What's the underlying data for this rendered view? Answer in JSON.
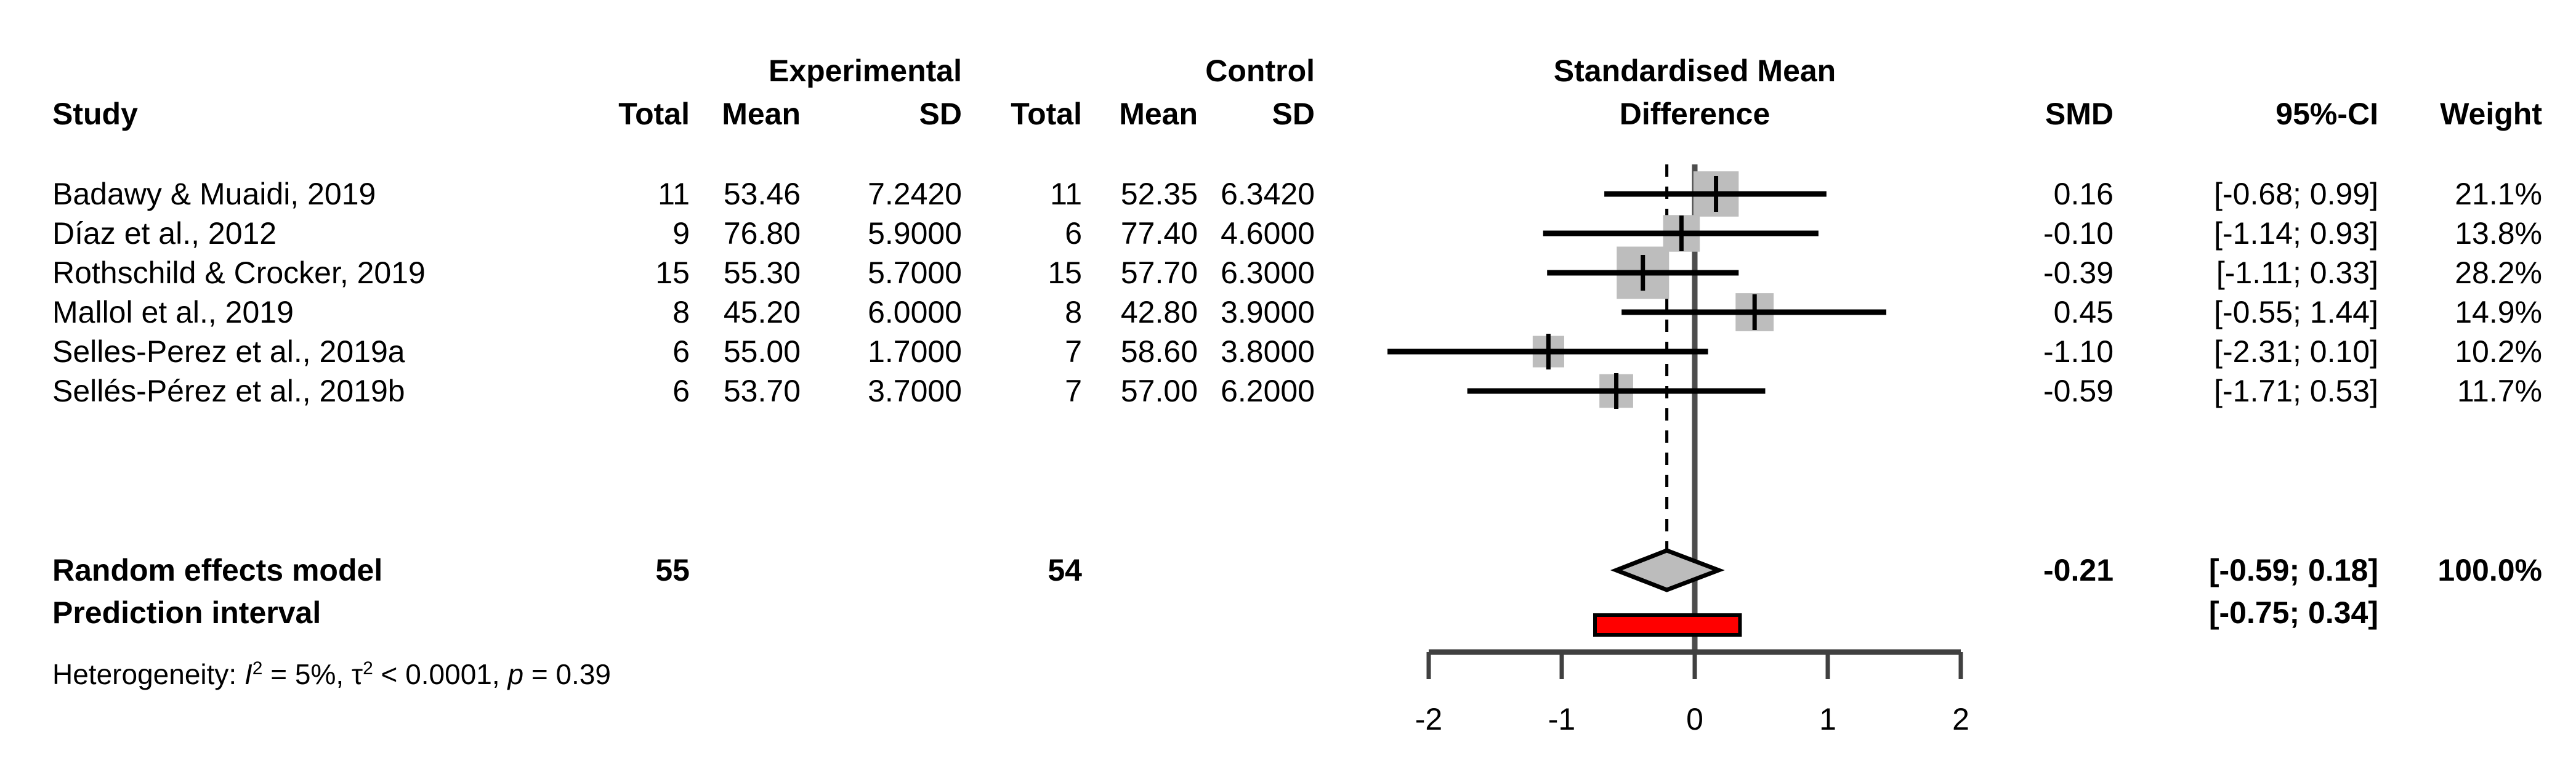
{
  "chart_data": {
    "type": "forest",
    "title_line1": "Standardised Mean",
    "title_line2": "Difference",
    "columns": {
      "study": "Study",
      "group_experimental": "Experimental",
      "group_control": "Control",
      "total": "Total",
      "mean": "Mean",
      "sd": "SD",
      "smd": "SMD",
      "ci": "95%-CI",
      "weight": "Weight"
    },
    "studies": [
      {
        "name": "Badawy & Muaidi, 2019",
        "exp_total": "11",
        "exp_mean": "53.46",
        "exp_sd": "7.2420",
        "ctrl_total": "11",
        "ctrl_mean": "52.35",
        "ctrl_sd": "6.3420",
        "smd_text": "0.16",
        "ci_text": "[-0.68; 0.99]",
        "weight_text": "21.1%",
        "smd": 0.16,
        "ci_low": -0.68,
        "ci_high": 0.99,
        "weight": 21.1
      },
      {
        "name": "Díaz et al., 2012",
        "exp_total": "9",
        "exp_mean": "76.80",
        "exp_sd": "5.9000",
        "ctrl_total": "6",
        "ctrl_mean": "77.40",
        "ctrl_sd": "4.6000",
        "smd_text": "-0.10",
        "ci_text": "[-1.14; 0.93]",
        "weight_text": "13.8%",
        "smd": -0.1,
        "ci_low": -1.14,
        "ci_high": 0.93,
        "weight": 13.8
      },
      {
        "name": "Rothschild & Crocker, 2019",
        "exp_total": "15",
        "exp_mean": "55.30",
        "exp_sd": "5.7000",
        "ctrl_total": "15",
        "ctrl_mean": "57.70",
        "ctrl_sd": "6.3000",
        "smd_text": "-0.39",
        "ci_text": "[-1.11; 0.33]",
        "weight_text": "28.2%",
        "smd": -0.39,
        "ci_low": -1.11,
        "ci_high": 0.33,
        "weight": 28.2
      },
      {
        "name": "Mallol et al., 2019",
        "exp_total": "8",
        "exp_mean": "45.20",
        "exp_sd": "6.0000",
        "ctrl_total": "8",
        "ctrl_mean": "42.80",
        "ctrl_sd": "3.9000",
        "smd_text": "0.45",
        "ci_text": "[-0.55; 1.44]",
        "weight_text": "14.9%",
        "smd": 0.45,
        "ci_low": -0.55,
        "ci_high": 1.44,
        "weight": 14.9
      },
      {
        "name": "Selles-Perez et al., 2019a",
        "exp_total": "6",
        "exp_mean": "55.00",
        "exp_sd": "1.7000",
        "ctrl_total": "7",
        "ctrl_mean": "58.60",
        "ctrl_sd": "3.8000",
        "smd_text": "-1.10",
        "ci_text": "[-2.31; 0.10]",
        "weight_text": "10.2%",
        "smd": -1.1,
        "ci_low": -2.31,
        "ci_high": 0.1,
        "weight": 10.2
      },
      {
        "name": "Sellés-Pérez et al., 2019b",
        "exp_total": "6",
        "exp_mean": "53.70",
        "exp_sd": "3.7000",
        "ctrl_total": "7",
        "ctrl_mean": "57.00",
        "ctrl_sd": "6.2000",
        "smd_text": "-0.59",
        "ci_text": "[-1.71; 0.53]",
        "weight_text": "11.7%",
        "smd": -0.59,
        "ci_low": -1.71,
        "ci_high": 0.53,
        "weight": 11.7
      }
    ],
    "pooled": {
      "label": "Random effects model",
      "exp_total": "55",
      "ctrl_total": "54",
      "smd_text": "-0.21",
      "ci_text": "[-0.59; 0.18]",
      "weight_text": "100.0%",
      "smd": -0.21,
      "ci_low": -0.59,
      "ci_high": 0.18
    },
    "prediction": {
      "label": "Prediction interval",
      "ci_text": "[-0.75; 0.34]",
      "ci_low": -0.75,
      "ci_high": 0.34
    },
    "heterogeneity": {
      "prefix": "Heterogeneity: ",
      "i_sym": "I",
      "i_sup": "2",
      "i_val": " = 5%, ",
      "tau_sym": "τ",
      "tau_sup": "2",
      "tau_val": " < 0.0001, ",
      "p_sym": "p",
      "p_val": " = 0.39"
    },
    "x_axis": {
      "ticks": [
        -2,
        -1,
        0,
        1,
        2
      ],
      "labels": [
        "-2",
        "-1",
        "0",
        "1",
        "2"
      ],
      "range": [
        -2,
        2
      ],
      "zero_line": 0
    },
    "colors": {
      "square_fill": "#bdbdbd",
      "diamond_fill": "#bcbcbc",
      "prediction_bar_fill": "#ff0000",
      "ci_line": "#000000",
      "zero_line": "#4d4d4d",
      "dashed_line": "#000000",
      "axis_line": "#404040",
      "outline": "#000000"
    }
  }
}
